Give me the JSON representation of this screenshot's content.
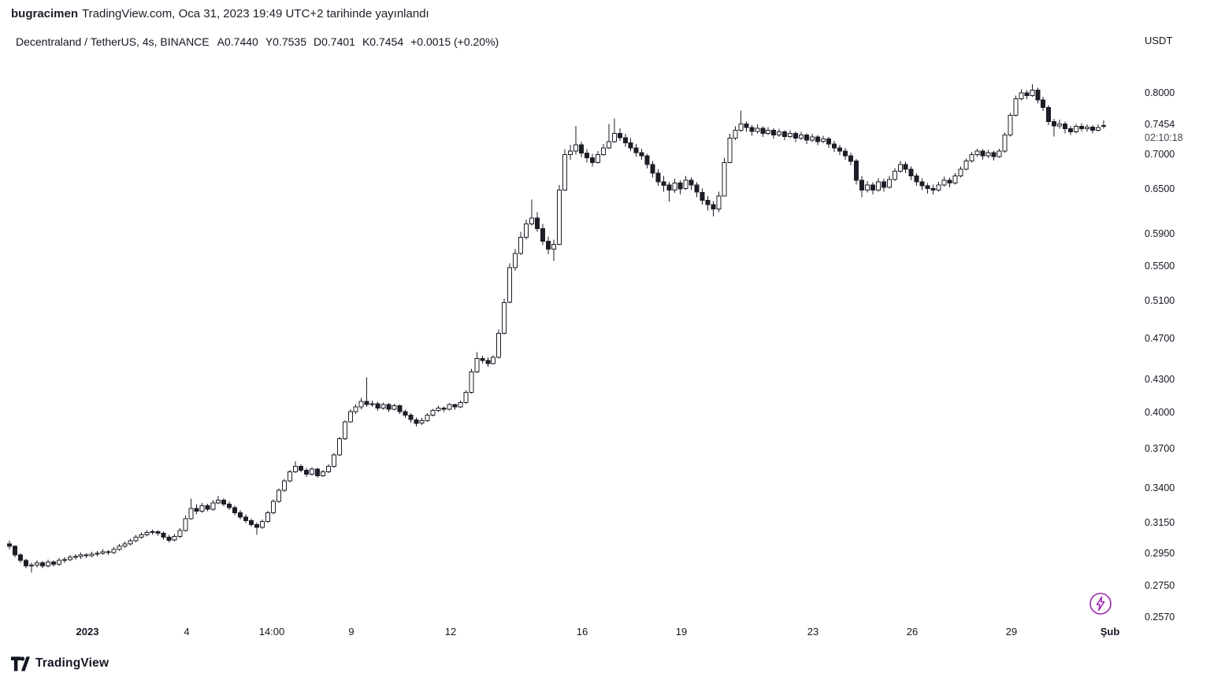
{
  "header": {
    "author": "bugracimen",
    "rest": "TradingView.com, Oca 31, 2023 19:49 UTC+2 tarihinde yayınlandı"
  },
  "legend": {
    "title": "Decentraland / TetherUS, 4s, BINANCE",
    "open_label": "A",
    "open": "0.7440",
    "high_label": "Y",
    "high": "0.7535",
    "low_label": "D",
    "low": "0.7401",
    "close_label": "K",
    "close": "0.7454",
    "change": "+0.0015 (+0.20%)"
  },
  "price_axis": {
    "unit": "USDT",
    "current_price": "0.7454",
    "countdown": "02:10:18",
    "ticks": [
      "0.8000",
      "0.7000",
      "0.6500",
      "0.5900",
      "0.5500",
      "0.5100",
      "0.4700",
      "0.4300",
      "0.4000",
      "0.3700",
      "0.3400",
      "0.3150",
      "0.2950",
      "0.2750",
      "0.2570"
    ]
  },
  "time_axis": {
    "ticks": [
      {
        "label": "2023",
        "i": 14.2,
        "bold": true
      },
      {
        "label": "4",
        "i": 32.2
      },
      {
        "label": "14:00",
        "i": 47.7
      },
      {
        "label": "9",
        "i": 62.2
      },
      {
        "label": "12",
        "i": 80.2
      },
      {
        "label": "16",
        "i": 104.2
      },
      {
        "label": "19",
        "i": 122.2
      },
      {
        "label": "23",
        "i": 146.2
      },
      {
        "label": "26",
        "i": 164.2
      },
      {
        "label": "29",
        "i": 182.2
      },
      {
        "label": "Şub",
        "i": 200.2,
        "bold": true
      }
    ]
  },
  "footer": {
    "brand": "TradingView"
  },
  "icons": {
    "lightning_color": "#9c27b0"
  },
  "colors": {
    "text": "#131722",
    "up": "#ffffff",
    "down": "#1c1e27",
    "border": "#1c1e27",
    "background": "#ffffff"
  },
  "chart_data": {
    "type": "candlestick",
    "title": "Decentraland / TetherUS, 4s, BINANCE",
    "pair": "Decentraland / TetherUS",
    "exchange": "BINANCE",
    "interval": "4s",
    "quote_unit": "USDT",
    "scale": "log",
    "ylim": [
      0.25,
      0.84
    ],
    "grid": false,
    "legend_position": "top-left",
    "visible_ohlc": {
      "open": 0.744,
      "high": 0.7535,
      "low": 0.7401,
      "close": 0.7454,
      "change": "+0.0015 (+0.20%)"
    },
    "candles": [
      [
        0.301,
        0.303,
        0.2975,
        0.2995
      ],
      [
        0.2995,
        0.3,
        0.2925,
        0.294
      ],
      [
        0.294,
        0.295,
        0.289,
        0.2905
      ],
      [
        0.2905,
        0.2915,
        0.2855,
        0.287
      ],
      [
        0.287,
        0.289,
        0.283,
        0.2875
      ],
      [
        0.2875,
        0.2905,
        0.286,
        0.289
      ],
      [
        0.289,
        0.29,
        0.2855,
        0.287
      ],
      [
        0.287,
        0.291,
        0.286,
        0.2895
      ],
      [
        0.2895,
        0.2905,
        0.2865,
        0.288
      ],
      [
        0.288,
        0.292,
        0.287,
        0.2905
      ],
      [
        0.2905,
        0.2925,
        0.289,
        0.291
      ],
      [
        0.291,
        0.294,
        0.29,
        0.2925
      ],
      [
        0.2925,
        0.2945,
        0.291,
        0.293
      ],
      [
        0.293,
        0.2955,
        0.2915,
        0.294
      ],
      [
        0.294,
        0.295,
        0.292,
        0.2935
      ],
      [
        0.2935,
        0.296,
        0.2925,
        0.2945
      ],
      [
        0.2945,
        0.2965,
        0.293,
        0.295
      ],
      [
        0.295,
        0.2975,
        0.294,
        0.296
      ],
      [
        0.296,
        0.297,
        0.294,
        0.2955
      ],
      [
        0.2955,
        0.299,
        0.2945,
        0.2975
      ],
      [
        0.2975,
        0.301,
        0.2965,
        0.2995
      ],
      [
        0.2995,
        0.3025,
        0.2985,
        0.301
      ],
      [
        0.301,
        0.3045,
        0.3,
        0.303
      ],
      [
        0.303,
        0.307,
        0.302,
        0.3055
      ],
      [
        0.3055,
        0.3085,
        0.3045,
        0.307
      ],
      [
        0.307,
        0.31,
        0.306,
        0.3085
      ],
      [
        0.3085,
        0.3105,
        0.307,
        0.309
      ],
      [
        0.309,
        0.31,
        0.3065,
        0.308
      ],
      [
        0.308,
        0.309,
        0.304,
        0.3055
      ],
      [
        0.3055,
        0.307,
        0.302,
        0.3035
      ],
      [
        0.3035,
        0.3075,
        0.3025,
        0.306
      ],
      [
        0.306,
        0.3115,
        0.305,
        0.31
      ],
      [
        0.31,
        0.32,
        0.309,
        0.318
      ],
      [
        0.318,
        0.332,
        0.317,
        0.325
      ],
      [
        0.325,
        0.328,
        0.321,
        0.323
      ],
      [
        0.323,
        0.329,
        0.322,
        0.327
      ],
      [
        0.327,
        0.3285,
        0.323,
        0.3245
      ],
      [
        0.3245,
        0.331,
        0.3235,
        0.329
      ],
      [
        0.329,
        0.334,
        0.328,
        0.331
      ],
      [
        0.331,
        0.3325,
        0.3265,
        0.328
      ],
      [
        0.328,
        0.33,
        0.324,
        0.3255
      ],
      [
        0.3255,
        0.327,
        0.3205,
        0.322
      ],
      [
        0.322,
        0.324,
        0.3175,
        0.319
      ],
      [
        0.319,
        0.321,
        0.315,
        0.3165
      ],
      [
        0.3165,
        0.318,
        0.3125,
        0.314
      ],
      [
        0.314,
        0.3155,
        0.307,
        0.312
      ],
      [
        0.312,
        0.3175,
        0.311,
        0.316
      ],
      [
        0.316,
        0.3235,
        0.315,
        0.322
      ],
      [
        0.322,
        0.3315,
        0.321,
        0.33
      ],
      [
        0.33,
        0.3395,
        0.329,
        0.338
      ],
      [
        0.338,
        0.3465,
        0.337,
        0.345
      ],
      [
        0.345,
        0.3535,
        0.344,
        0.352
      ],
      [
        0.352,
        0.36,
        0.351,
        0.356
      ],
      [
        0.356,
        0.3575,
        0.3515,
        0.353
      ],
      [
        0.353,
        0.355,
        0.348,
        0.35
      ],
      [
        0.35,
        0.3555,
        0.349,
        0.354
      ],
      [
        0.354,
        0.355,
        0.3475,
        0.349
      ],
      [
        0.349,
        0.3535,
        0.348,
        0.352
      ],
      [
        0.352,
        0.3575,
        0.351,
        0.356
      ],
      [
        0.356,
        0.3665,
        0.355,
        0.365
      ],
      [
        0.365,
        0.3795,
        0.364,
        0.378
      ],
      [
        0.378,
        0.3935,
        0.377,
        0.392
      ],
      [
        0.392,
        0.403,
        0.391,
        0.401
      ],
      [
        0.401,
        0.4075,
        0.399,
        0.405
      ],
      [
        0.405,
        0.413,
        0.403,
        0.41
      ],
      [
        0.41,
        0.432,
        0.405,
        0.407
      ],
      [
        0.407,
        0.4105,
        0.405,
        0.408
      ],
      [
        0.408,
        0.4095,
        0.4015,
        0.404
      ],
      [
        0.404,
        0.409,
        0.4025,
        0.407
      ],
      [
        0.407,
        0.4085,
        0.4005,
        0.403
      ],
      [
        0.403,
        0.408,
        0.402,
        0.406
      ],
      [
        0.406,
        0.407,
        0.399,
        0.401
      ],
      [
        0.401,
        0.4025,
        0.3955,
        0.398
      ],
      [
        0.398,
        0.3995,
        0.3915,
        0.394
      ],
      [
        0.394,
        0.396,
        0.388,
        0.391
      ],
      [
        0.391,
        0.3955,
        0.3895,
        0.393
      ],
      [
        0.393,
        0.3995,
        0.392,
        0.398
      ],
      [
        0.398,
        0.4035,
        0.397,
        0.402
      ],
      [
        0.402,
        0.406,
        0.4005,
        0.404
      ],
      [
        0.404,
        0.4055,
        0.4005,
        0.403
      ],
      [
        0.403,
        0.4085,
        0.402,
        0.407
      ],
      [
        0.407,
        0.408,
        0.4025,
        0.405
      ],
      [
        0.405,
        0.4105,
        0.404,
        0.409
      ],
      [
        0.409,
        0.42,
        0.408,
        0.418
      ],
      [
        0.418,
        0.44,
        0.417,
        0.437
      ],
      [
        0.437,
        0.456,
        0.436,
        0.45
      ],
      [
        0.45,
        0.4525,
        0.445,
        0.448
      ],
      [
        0.448,
        0.451,
        0.442,
        0.445
      ],
      [
        0.445,
        0.453,
        0.444,
        0.451
      ],
      [
        0.451,
        0.479,
        0.45,
        0.475
      ],
      [
        0.475,
        0.512,
        0.474,
        0.508
      ],
      [
        0.508,
        0.553,
        0.507,
        0.548
      ],
      [
        0.548,
        0.57,
        0.544,
        0.565
      ],
      [
        0.565,
        0.592,
        0.563,
        0.585
      ],
      [
        0.585,
        0.608,
        0.582,
        0.602
      ],
      [
        0.602,
        0.635,
        0.6,
        0.61
      ],
      [
        0.61,
        0.618,
        0.592,
        0.596
      ],
      [
        0.596,
        0.602,
        0.575,
        0.58
      ],
      [
        0.58,
        0.586,
        0.564,
        0.57
      ],
      [
        0.57,
        0.582,
        0.556,
        0.576
      ],
      [
        0.576,
        0.655,
        0.575,
        0.648
      ],
      [
        0.648,
        0.708,
        0.647,
        0.7
      ],
      [
        0.7,
        0.715,
        0.692,
        0.705
      ],
      [
        0.705,
        0.745,
        0.7,
        0.715
      ],
      [
        0.715,
        0.72,
        0.696,
        0.702
      ],
      [
        0.702,
        0.708,
        0.688,
        0.695
      ],
      [
        0.695,
        0.701,
        0.682,
        0.688
      ],
      [
        0.688,
        0.705,
        0.686,
        0.7
      ],
      [
        0.7,
        0.716,
        0.698,
        0.71
      ],
      [
        0.71,
        0.748,
        0.708,
        0.72
      ],
      [
        0.72,
        0.757,
        0.718,
        0.733
      ],
      [
        0.733,
        0.741,
        0.721,
        0.726
      ],
      [
        0.726,
        0.732,
        0.712,
        0.718
      ],
      [
        0.718,
        0.725,
        0.705,
        0.71
      ],
      [
        0.71,
        0.716,
        0.697,
        0.703
      ],
      [
        0.703,
        0.709,
        0.692,
        0.698
      ],
      [
        0.698,
        0.701,
        0.679,
        0.685
      ],
      [
        0.685,
        0.69,
        0.666,
        0.672
      ],
      [
        0.672,
        0.678,
        0.654,
        0.66
      ],
      [
        0.66,
        0.668,
        0.646,
        0.655
      ],
      [
        0.655,
        0.66,
        0.632,
        0.648
      ],
      [
        0.648,
        0.664,
        0.644,
        0.658
      ],
      [
        0.658,
        0.662,
        0.642,
        0.65
      ],
      [
        0.65,
        0.668,
        0.648,
        0.662
      ],
      [
        0.662,
        0.666,
        0.648,
        0.655
      ],
      [
        0.655,
        0.659,
        0.638,
        0.645
      ],
      [
        0.645,
        0.65,
        0.628,
        0.634
      ],
      [
        0.634,
        0.64,
        0.62,
        0.628
      ],
      [
        0.628,
        0.633,
        0.612,
        0.622
      ],
      [
        0.622,
        0.646,
        0.618,
        0.64
      ],
      [
        0.64,
        0.695,
        0.639,
        0.688
      ],
      [
        0.688,
        0.732,
        0.687,
        0.725
      ],
      [
        0.725,
        0.744,
        0.722,
        0.738
      ],
      [
        0.738,
        0.77,
        0.735,
        0.748
      ],
      [
        0.748,
        0.752,
        0.735,
        0.742
      ],
      [
        0.742,
        0.746,
        0.729,
        0.736
      ],
      [
        0.736,
        0.747,
        0.733,
        0.741
      ],
      [
        0.741,
        0.744,
        0.727,
        0.733
      ],
      [
        0.733,
        0.743,
        0.73,
        0.738
      ],
      [
        0.738,
        0.741,
        0.724,
        0.73
      ],
      [
        0.73,
        0.74,
        0.727,
        0.735
      ],
      [
        0.735,
        0.738,
        0.722,
        0.728
      ],
      [
        0.728,
        0.738,
        0.725,
        0.733
      ],
      [
        0.733,
        0.736,
        0.719,
        0.725
      ],
      [
        0.725,
        0.735,
        0.722,
        0.73
      ],
      [
        0.73,
        0.733,
        0.716,
        0.722
      ],
      [
        0.722,
        0.732,
        0.719,
        0.727
      ],
      [
        0.727,
        0.73,
        0.714,
        0.72
      ],
      [
        0.72,
        0.729,
        0.717,
        0.724
      ],
      [
        0.724,
        0.727,
        0.71,
        0.716
      ],
      [
        0.716,
        0.721,
        0.704,
        0.71
      ],
      [
        0.71,
        0.715,
        0.699,
        0.705
      ],
      [
        0.705,
        0.71,
        0.692,
        0.698
      ],
      [
        0.698,
        0.703,
        0.684,
        0.69
      ],
      [
        0.69,
        0.693,
        0.656,
        0.662
      ],
      [
        0.662,
        0.668,
        0.638,
        0.648
      ],
      [
        0.648,
        0.661,
        0.645,
        0.655
      ],
      [
        0.655,
        0.659,
        0.642,
        0.648
      ],
      [
        0.648,
        0.665,
        0.646,
        0.66
      ],
      [
        0.66,
        0.664,
        0.646,
        0.652
      ],
      [
        0.652,
        0.668,
        0.65,
        0.663
      ],
      [
        0.663,
        0.68,
        0.661,
        0.675
      ],
      [
        0.675,
        0.69,
        0.673,
        0.685
      ],
      [
        0.685,
        0.689,
        0.672,
        0.678
      ],
      [
        0.678,
        0.682,
        0.662,
        0.668
      ],
      [
        0.668,
        0.672,
        0.654,
        0.66
      ],
      [
        0.66,
        0.665,
        0.648,
        0.654
      ],
      [
        0.654,
        0.658,
        0.643,
        0.65
      ],
      [
        0.65,
        0.656,
        0.642,
        0.648
      ],
      [
        0.648,
        0.66,
        0.646,
        0.655
      ],
      [
        0.655,
        0.667,
        0.653,
        0.662
      ],
      [
        0.662,
        0.666,
        0.652,
        0.658
      ],
      [
        0.658,
        0.672,
        0.656,
        0.668
      ],
      [
        0.668,
        0.682,
        0.666,
        0.678
      ],
      [
        0.678,
        0.694,
        0.676,
        0.69
      ],
      [
        0.69,
        0.704,
        0.688,
        0.7
      ],
      [
        0.7,
        0.709,
        0.697,
        0.705
      ],
      [
        0.705,
        0.708,
        0.692,
        0.698
      ],
      [
        0.698,
        0.707,
        0.695,
        0.703
      ],
      [
        0.703,
        0.706,
        0.691,
        0.697
      ],
      [
        0.697,
        0.709,
        0.695,
        0.705
      ],
      [
        0.705,
        0.734,
        0.703,
        0.73
      ],
      [
        0.73,
        0.766,
        0.728,
        0.762
      ],
      [
        0.762,
        0.795,
        0.76,
        0.79
      ],
      [
        0.79,
        0.806,
        0.787,
        0.8
      ],
      [
        0.8,
        0.805,
        0.789,
        0.795
      ],
      [
        0.795,
        0.815,
        0.793,
        0.805
      ],
      [
        0.805,
        0.809,
        0.782,
        0.788
      ],
      [
        0.788,
        0.793,
        0.769,
        0.775
      ],
      [
        0.775,
        0.779,
        0.746,
        0.752
      ],
      [
        0.752,
        0.756,
        0.728,
        0.745
      ],
      [
        0.745,
        0.755,
        0.74,
        0.748
      ],
      [
        0.748,
        0.752,
        0.733,
        0.74
      ],
      [
        0.74,
        0.745,
        0.73,
        0.735
      ],
      [
        0.735,
        0.748,
        0.733,
        0.744
      ],
      [
        0.744,
        0.749,
        0.736,
        0.74
      ],
      [
        0.74,
        0.747,
        0.735,
        0.743
      ],
      [
        0.743,
        0.746,
        0.733,
        0.738
      ],
      [
        0.738,
        0.747,
        0.736,
        0.742
      ],
      [
        0.744,
        0.7535,
        0.7401,
        0.7454
      ]
    ]
  }
}
